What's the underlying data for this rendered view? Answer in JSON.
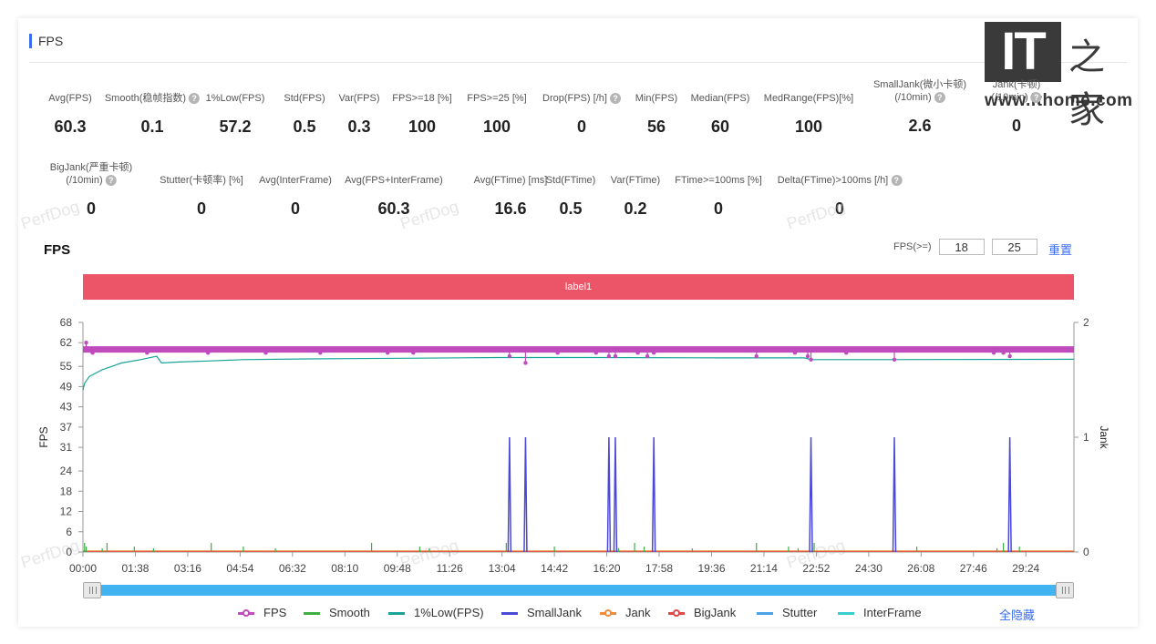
{
  "header": {
    "title": "FPS"
  },
  "logo": {
    "mark": "IT",
    "zh": "之家",
    "url": "www.ithome.com"
  },
  "stats": [
    {
      "label": "Avg(FPS)",
      "value": "60.3",
      "help": false
    },
    {
      "label": "Smooth(稳帧指数)",
      "value": "0.1",
      "help": true
    },
    {
      "label": "1%Low(FPS)",
      "value": "57.2",
      "help": false
    },
    {
      "label": "Std(FPS)",
      "value": "0.5",
      "help": false
    },
    {
      "label": "Var(FPS)",
      "value": "0.3",
      "help": false
    },
    {
      "label": "FPS>=18 [%]",
      "value": "100",
      "help": false
    },
    {
      "label": "FPS>=25 [%]",
      "value": "100",
      "help": false
    },
    {
      "label": "Drop(FPS) [/h]",
      "value": "0",
      "help": true
    },
    {
      "label": "Min(FPS)",
      "value": "56",
      "help": false
    },
    {
      "label": "Median(FPS)",
      "value": "60",
      "help": false
    },
    {
      "label": "MedRange(FPS)[%]",
      "value": "100",
      "help": false
    },
    {
      "label": "SmallJank(微小卡顿)",
      "label2": "(/10min)",
      "value": "2.6",
      "help": true
    },
    {
      "label": "Jank(卡顿)",
      "label2": "(/10min)",
      "value": "0",
      "help": true
    },
    {
      "label": "BigJank(严重卡顿)",
      "label2": "(/10min)",
      "value": "0",
      "help": true
    },
    {
      "label": "Stutter(卡顿率) [%]",
      "value": "0",
      "help": false
    },
    {
      "label": "Avg(InterFrame)",
      "value": "0",
      "help": false
    },
    {
      "label": "Avg(FPS+InterFrame)",
      "value": "60.3",
      "help": false
    },
    {
      "label": "Avg(FTime) [ms]",
      "value": "16.6",
      "help": false
    },
    {
      "label": "Std(FTime)",
      "value": "0.5",
      "help": false
    },
    {
      "label": "Var(FTime)",
      "value": "0.2",
      "help": false
    },
    {
      "label": "FTime>=100ms [%]",
      "value": "0",
      "help": false
    },
    {
      "label": "Delta(FTime)>100ms [/h]",
      "value": "0",
      "help": true
    }
  ],
  "watermark": "PerfDog",
  "chart_header": {
    "title": "FPS",
    "threshold_label": "FPS(>=)",
    "threshold_1": "18",
    "threshold_2": "25",
    "reset_label": "重置"
  },
  "label_bar": "label1",
  "colors": {
    "fps": "#c04bbd",
    "smooth": "#3cb043",
    "low1": "#17a398",
    "smalljank": "#4a48d6",
    "jank": "#f08a3c",
    "bigjank": "#e04848",
    "stutter": "#4aa3e8",
    "interframe": "#36cfd0",
    "label_bar": "#eb5567",
    "slider": "#41b3f0",
    "accent": "#3b6cf0"
  },
  "chart_data": {
    "type": "line",
    "ylabel": "FPS",
    "y2label": "Jank",
    "y_ticks": [
      0,
      6,
      12,
      18,
      24,
      31,
      37,
      43,
      49,
      55,
      62,
      68
    ],
    "ylim": [
      0,
      68
    ],
    "y2_ticks": [
      0,
      1,
      2
    ],
    "y2lim": [
      0,
      2
    ],
    "x_ticks": [
      "00:00",
      "01:38",
      "03:16",
      "04:54",
      "06:32",
      "08:10",
      "09:48",
      "11:26",
      "13:04",
      "14:42",
      "16:20",
      "17:58",
      "19:36",
      "21:14",
      "22:52",
      "24:30",
      "26:08",
      "27:46",
      "29:24"
    ],
    "duration_min": 30.9,
    "series": [
      {
        "name": "FPS",
        "baseline": 60,
        "dips": [
          [
            0.1,
            62
          ],
          [
            0.3,
            59
          ],
          [
            2.0,
            59
          ],
          [
            3.9,
            59
          ],
          [
            5.7,
            59
          ],
          [
            7.4,
            59
          ],
          [
            9.5,
            59
          ],
          [
            10.3,
            59
          ],
          [
            13.3,
            58
          ],
          [
            13.8,
            56
          ],
          [
            14.8,
            59
          ],
          [
            16.0,
            59
          ],
          [
            16.4,
            58
          ],
          [
            16.6,
            58
          ],
          [
            17.3,
            59
          ],
          [
            17.6,
            58
          ],
          [
            17.8,
            59
          ],
          [
            21.0,
            58
          ],
          [
            22.2,
            59
          ],
          [
            22.6,
            58
          ],
          [
            22.7,
            57
          ],
          [
            23.8,
            59
          ],
          [
            25.3,
            57
          ],
          [
            28.4,
            59
          ],
          [
            28.7,
            59
          ],
          [
            28.9,
            58
          ]
        ]
      },
      {
        "name": "Smooth"
      },
      {
        "name": "1%Low(FPS)",
        "points": [
          [
            0,
            48
          ],
          [
            0.05,
            50
          ],
          [
            0.2,
            52
          ],
          [
            0.6,
            54
          ],
          [
            1.2,
            56
          ],
          [
            1.8,
            57
          ],
          [
            2.3,
            58
          ],
          [
            2.45,
            56
          ],
          [
            3.0,
            56.3
          ],
          [
            4.0,
            56.6
          ],
          [
            5.0,
            57
          ],
          [
            7.0,
            57.2
          ],
          [
            10,
            57.4
          ],
          [
            13.0,
            57.6
          ],
          [
            16,
            57.6
          ],
          [
            20,
            57.5
          ],
          [
            22.5,
            57.5
          ],
          [
            22.7,
            57
          ],
          [
            25,
            57
          ],
          [
            30.9,
            57.1
          ]
        ]
      },
      {
        "name": "SmallJank",
        "spikes": [
          13.3,
          13.8,
          16.4,
          16.6,
          17.8,
          22.7,
          25.3,
          28.9
        ]
      },
      {
        "name": "Jank"
      },
      {
        "name": "BigJank"
      },
      {
        "name": "Stutter"
      },
      {
        "name": "InterFrame"
      }
    ]
  },
  "legend": {
    "items": [
      "FPS",
      "Smooth",
      "1%Low(FPS)",
      "SmallJank",
      "Jank",
      "BigJank",
      "Stutter",
      "InterFrame"
    ],
    "hide_all": "全隐藏"
  }
}
